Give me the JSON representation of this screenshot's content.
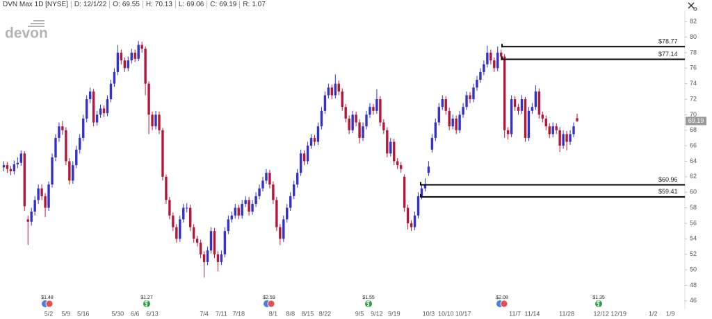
{
  "header": {
    "symbol": "DVN Max 1D [NYSE]",
    "fields": [
      {
        "label": "D:",
        "value": "12/1/22"
      },
      {
        "label": "O:",
        "value": 69.55
      },
      {
        "label": "H:",
        "value": 70.13
      },
      {
        "label": "L:",
        "value": 69.06
      },
      {
        "label": "C:",
        "value": 69.19
      },
      {
        "label": "R:",
        "value": 1.07
      }
    ]
  },
  "logo": "devon",
  "chart_data": {
    "type": "candlestick",
    "up_color": "#3431c9",
    "down_color": "#b3173b",
    "grid": false,
    "categories": [
      null,
      null,
      null,
      null,
      null,
      null,
      null,
      null,
      null,
      null,
      null,
      null,
      null,
      null,
      null,
      null,
      null,
      null,
      null,
      null,
      "5/2",
      null,
      null,
      null,
      null,
      "5/9",
      null,
      null,
      null,
      null,
      "5/16",
      null,
      null,
      null,
      null,
      null,
      null,
      null,
      null,
      null,
      "5/30",
      null,
      null,
      null,
      null,
      "6/6",
      null,
      null,
      null,
      null,
      "6/13",
      null,
      null,
      null,
      null,
      null,
      null,
      null,
      null,
      null,
      null,
      null,
      null,
      null,
      null,
      "7/4",
      null,
      null,
      null,
      null,
      "7/11",
      null,
      null,
      null,
      null,
      "7/18",
      null,
      null,
      null,
      null,
      null,
      null,
      null,
      null,
      null,
      "8/1",
      null,
      null,
      null,
      null,
      "8/8",
      null,
      null,
      null,
      null,
      "8/15",
      null,
      null,
      null,
      null,
      "8/22",
      null,
      null,
      null,
      null,
      null,
      null,
      null,
      null,
      null,
      "9/5",
      null,
      null,
      null,
      null,
      "9/12",
      null,
      null,
      null,
      null,
      "9/19",
      null,
      null,
      null,
      null,
      null,
      null,
      null,
      null,
      null,
      "10/3",
      null,
      null,
      null,
      null,
      "10/10",
      null,
      null,
      null,
      null,
      "10/17",
      null,
      null,
      null,
      null,
      null,
      null,
      null,
      null,
      null,
      null,
      null,
      null,
      null,
      null,
      "11/7",
      null,
      null,
      null,
      null,
      "11/14",
      null,
      null,
      null,
      null,
      null,
      null,
      null,
      null,
      null,
      "11/28",
      null,
      null,
      null,
      null,
      null,
      null,
      null,
      null,
      null,
      "12/12",
      null,
      null,
      null,
      null,
      "12/19",
      null,
      null,
      null,
      null,
      null,
      null,
      null,
      null,
      null,
      "1/2",
      null,
      null,
      null,
      null,
      "1/9",
      null,
      null,
      null,
      null
    ],
    "open": [
      null,
      null,
      null,
      null,
      null,
      null,
      null,
      63.2,
      63.5,
      63.0,
      62.7,
      63.6,
      63.8,
      65.0,
      56.5,
      56.2,
      57.5,
      59.0,
      60.5,
      59.5,
      58.0,
      61.0,
      64.5,
      67.0,
      68.5,
      68.0,
      64.0,
      61.5,
      63.5,
      65.5,
      67.0,
      69.5,
      72.0,
      73.0,
      69.0,
      70.0,
      70.8,
      70.2,
      72.0,
      74.0,
      75.5,
      78.0,
      77.0,
      76.0,
      77.0,
      78.0,
      77.2,
      79.0,
      78.5,
      74.0,
      70.0,
      68.5,
      70.0,
      68.0,
      62.0,
      59.0,
      57.0,
      55.5,
      54.0,
      56.5,
      58.0,
      58.0,
      55.5,
      54.0,
      53.5,
      52.0,
      51.0,
      52.5,
      55.0,
      52.0,
      51.0,
      52.0,
      55.0,
      56.5,
      57.0,
      58.0,
      57.0,
      58.5,
      59.0,
      57.5,
      58.5,
      59.5,
      60.5,
      61.5,
      62.5,
      61.0,
      59.0,
      55.5,
      54.0,
      56.5,
      58.0,
      59.5,
      61.0,
      62.5,
      65.0,
      64.0,
      66.0,
      67.0,
      66.5,
      68.5,
      70.5,
      72.5,
      73.5,
      72.5,
      74.0,
      73.0,
      71.0,
      69.5,
      68.0,
      70.0,
      69.0,
      67.0,
      68.5,
      70.0,
      71.0,
      70.5,
      72.0,
      69.0,
      68.0,
      65.0,
      66.5,
      64.0,
      63.5,
      62.0,
      58.0,
      56.0,
      55.5,
      57.0,
      59.5,
      60.5,
      62.5,
      65.5,
      67.0,
      69.0,
      71.0,
      72.0,
      70.5,
      68.5,
      69.5,
      68.0,
      70.0,
      71.0,
      72.5,
      72.0,
      73.5,
      74.5,
      75.5,
      76.5,
      78.0,
      77.0,
      76.0,
      78.0,
      77.5,
      68.0,
      67.5,
      72.0,
      71.0,
      70.5,
      72.0,
      67.0,
      70.5,
      71.0,
      73.0,
      70.0,
      69.5,
      68.5,
      67.5,
      68.5,
      68.0,
      66.0,
      67.5,
      66.5,
      67.5,
      69.55,
      null,
      null,
      null,
      null,
      null,
      null,
      null,
      null,
      null,
      null,
      null,
      null,
      null,
      null,
      null,
      null,
      null,
      null,
      null,
      null,
      null,
      null,
      null,
      null,
      null,
      null,
      null,
      null,
      null,
      null,
      null
    ],
    "high": [
      null,
      null,
      null,
      null,
      null,
      null,
      null,
      64.0,
      63.9,
      63.4,
      64.1,
      64.5,
      65.4,
      65.3,
      57.0,
      58.0,
      59.5,
      61.0,
      61.0,
      59.9,
      61.4,
      65.0,
      67.5,
      69.0,
      69.2,
      68.4,
      64.4,
      64.0,
      66.0,
      67.5,
      70.0,
      72.5,
      73.5,
      73.3,
      70.5,
      71.3,
      71.2,
      72.5,
      74.5,
      76.0,
      79.0,
      78.4,
      77.4,
      77.5,
      78.5,
      78.4,
      79.5,
      79.4,
      78.8,
      74.3,
      70.4,
      70.5,
      70.4,
      68.3,
      62.3,
      59.4,
      57.4,
      55.9,
      57.0,
      58.5,
      58.6,
      58.4,
      55.9,
      54.4,
      53.9,
      52.4,
      53.0,
      55.5,
      55.4,
      52.4,
      52.5,
      55.5,
      57.0,
      57.5,
      58.5,
      58.4,
      59.0,
      59.5,
      59.4,
      59.0,
      60.0,
      61.0,
      62.0,
      63.0,
      62.9,
      61.4,
      59.4,
      55.9,
      57.0,
      58.5,
      60.0,
      61.5,
      63.0,
      65.5,
      65.4,
      66.5,
      67.5,
      67.4,
      69.0,
      71.0,
      73.0,
      74.0,
      73.9,
      75.2,
      74.4,
      73.4,
      71.4,
      69.9,
      70.5,
      70.4,
      69.4,
      69.0,
      70.5,
      71.5,
      71.4,
      73.3,
      72.4,
      69.4,
      68.4,
      67.0,
      66.9,
      64.4,
      63.9,
      62.3,
      58.4,
      56.4,
      57.5,
      60.0,
      61.0,
      61.8,
      64.0,
      67.5,
      69.5,
      71.5,
      72.5,
      72.4,
      70.9,
      70.0,
      69.9,
      70.5,
      71.5,
      73.0,
      72.9,
      74.0,
      75.0,
      76.0,
      77.0,
      78.9,
      78.4,
      77.4,
      78.8,
      78.4,
      77.8,
      68.4,
      72.5,
      72.4,
      71.4,
      72.5,
      72.3,
      71.0,
      71.5,
      73.8,
      73.4,
      70.4,
      69.9,
      68.9,
      69.0,
      68.9,
      68.4,
      68.0,
      67.9,
      68.0,
      69.0,
      70.13,
      null,
      null,
      null,
      null,
      null,
      null,
      null,
      null,
      null,
      null,
      null,
      null,
      null,
      null,
      null,
      null,
      null,
      null,
      null,
      null,
      null,
      null,
      null,
      null,
      null,
      null,
      null,
      null,
      null,
      null,
      null
    ],
    "low": [
      null,
      null,
      null,
      null,
      null,
      null,
      null,
      62.7,
      62.5,
      62.2,
      62.3,
      63.1,
      63.4,
      57.6,
      53.2,
      55.7,
      57.0,
      58.5,
      59.0,
      56.8,
      57.6,
      60.6,
      64.0,
      66.5,
      67.4,
      63.5,
      61.0,
      61.1,
      63.1,
      65.0,
      66.6,
      69.0,
      71.5,
      68.5,
      68.6,
      69.6,
      69.7,
      69.8,
      71.6,
      73.6,
      75.1,
      76.5,
      75.5,
      75.6,
      76.6,
      76.8,
      76.9,
      78.0,
      72.5,
      67.5,
      68.0,
      68.1,
      67.5,
      61.5,
      58.5,
      56.5,
      55.0,
      53.5,
      53.6,
      56.1,
      57.4,
      55.0,
      53.5,
      53.0,
      51.5,
      49.0,
      50.6,
      52.1,
      51.5,
      49.8,
      50.6,
      51.6,
      54.6,
      56.1,
      56.6,
      56.5,
      56.6,
      58.1,
      57.0,
      57.1,
      58.1,
      59.1,
      60.1,
      61.1,
      60.5,
      58.5,
      55.0,
      53.2,
      53.6,
      56.1,
      57.6,
      59.1,
      60.6,
      62.1,
      63.5,
      63.6,
      65.6,
      66.0,
      66.1,
      68.1,
      70.1,
      72.1,
      72.0,
      72.1,
      72.5,
      70.5,
      69.0,
      67.5,
      67.6,
      68.5,
      66.3,
      66.6,
      68.1,
      69.6,
      70.0,
      70.1,
      68.5,
      67.5,
      64.5,
      64.6,
      63.5,
      63.0,
      62.5,
      57.5,
      55.2,
      55.0,
      55.1,
      56.6,
      59.1,
      60.1,
      62.1,
      65.1,
      66.6,
      68.6,
      70.6,
      70.0,
      68.0,
      68.1,
      67.5,
      67.6,
      69.6,
      70.6,
      71.5,
      71.6,
      73.1,
      74.1,
      75.1,
      76.1,
      76.5,
      75.5,
      75.6,
      77.0,
      67.0,
      66.8,
      67.1,
      70.5,
      70.0,
      70.1,
      66.5,
      66.6,
      70.1,
      70.6,
      69.5,
      69.0,
      68.0,
      67.0,
      67.1,
      67.5,
      65.2,
      65.6,
      65.4,
      66.1,
      67.1,
      69.06,
      null,
      null,
      null,
      null,
      null,
      null,
      null,
      null,
      null,
      null,
      null,
      null,
      null,
      null,
      null,
      null,
      null,
      null,
      null,
      null,
      null,
      null,
      null,
      null,
      null,
      null,
      null,
      null,
      null,
      null,
      null
    ],
    "close": [
      null,
      null,
      null,
      null,
      null,
      null,
      null,
      63.5,
      63.0,
      62.7,
      63.6,
      63.8,
      65.0,
      58.2,
      56.2,
      57.5,
      59.0,
      60.5,
      59.5,
      58.0,
      61.0,
      64.5,
      67.0,
      68.5,
      68.0,
      64.0,
      61.5,
      63.5,
      65.5,
      67.0,
      69.5,
      72.0,
      73.0,
      69.0,
      70.0,
      70.8,
      70.2,
      72.0,
      74.0,
      75.5,
      78.0,
      77.0,
      76.0,
      77.0,
      78.0,
      77.2,
      79.0,
      78.5,
      74.0,
      70.0,
      68.5,
      70.0,
      68.0,
      62.0,
      59.0,
      57.0,
      55.5,
      54.0,
      56.5,
      58.0,
      58.0,
      55.5,
      54.0,
      53.5,
      52.0,
      51.0,
      52.5,
      55.0,
      52.0,
      51.0,
      52.0,
      55.0,
      56.5,
      57.0,
      58.0,
      57.0,
      58.5,
      59.0,
      57.5,
      58.5,
      59.5,
      60.5,
      61.5,
      62.5,
      61.0,
      59.0,
      55.5,
      54.0,
      56.5,
      58.0,
      59.5,
      61.0,
      62.5,
      65.0,
      64.0,
      66.0,
      67.0,
      66.5,
      68.5,
      70.5,
      72.5,
      73.5,
      72.5,
      74.0,
      73.0,
      71.0,
      69.5,
      68.0,
      70.0,
      69.0,
      67.0,
      68.5,
      70.0,
      71.0,
      70.5,
      72.0,
      69.0,
      68.0,
      65.0,
      66.5,
      64.0,
      63.5,
      63.0,
      58.0,
      56.0,
      55.5,
      57.0,
      59.5,
      60.5,
      61.0,
      63.3,
      67.0,
      69.0,
      71.0,
      72.0,
      70.5,
      68.5,
      69.5,
      68.0,
      70.0,
      71.0,
      72.5,
      72.0,
      73.5,
      74.5,
      75.5,
      76.5,
      78.0,
      77.0,
      76.0,
      78.0,
      77.5,
      68.0,
      67.5,
      72.0,
      71.0,
      70.5,
      72.0,
      67.0,
      70.5,
      71.0,
      73.0,
      70.0,
      69.5,
      68.5,
      67.5,
      68.5,
      68.0,
      66.0,
      67.5,
      66.5,
      67.5,
      68.5,
      69.19,
      null,
      null,
      null,
      null,
      null,
      null,
      null,
      null,
      null,
      null,
      null,
      null,
      null,
      null,
      null,
      null,
      null,
      null,
      null,
      null,
      null,
      null,
      null,
      null,
      null,
      null,
      null,
      null,
      null,
      null,
      null
    ],
    "ylim": [
      45,
      83
    ],
    "yticks": [
      46,
      48,
      50,
      52,
      54,
      56,
      58,
      60,
      62,
      64,
      66,
      68,
      70,
      72,
      74,
      76,
      78,
      80,
      82
    ],
    "last_price": 69.19,
    "levels": [
      {
        "value": 78.77,
        "label": "$78.77"
      },
      {
        "value": 77.14,
        "label": "$77.14"
      },
      {
        "value": 60.96,
        "label": "$60.96"
      },
      {
        "value": 59.41,
        "label": "$59.41"
      }
    ],
    "dividends": [
      "$1.48",
      "$1.27",
      "$2.59",
      "$1.55",
      "$2.08",
      "$1.35"
    ]
  }
}
